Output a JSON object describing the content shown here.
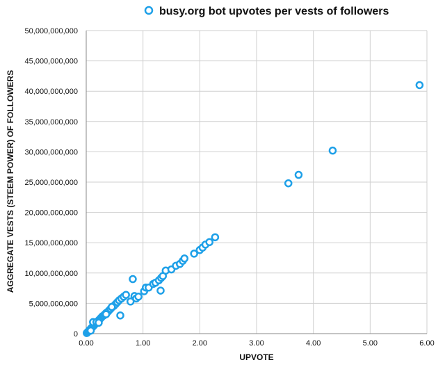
{
  "chart_data": {
    "type": "scatter",
    "title": "",
    "xlabel": "UPVOTE",
    "ylabel": "AGGREGATE VESTS (STEEM POWER) OF FOLLOWERS",
    "xlim": [
      0,
      6
    ],
    "ylim": [
      0,
      50000000000
    ],
    "grid": true,
    "legend_position": "top-center",
    "marker_color": "#1ea0e8",
    "x_tick_labels": [
      "0.00",
      "1.00",
      "2.00",
      "3.00",
      "4.00",
      "5.00",
      "6.00"
    ],
    "y_tick_labels": [
      "0",
      "5,000,000,000",
      "10,000,000,000",
      "15,000,000,000",
      "20,000,000,000",
      "25,000,000,000",
      "30,000,000,000",
      "35,000,000,000",
      "40,000,000,000",
      "45,000,000,000",
      "50,000,000,000"
    ],
    "series": [
      {
        "name": "busy.org bot upvotes per vests of followers",
        "points": [
          [
            0.01,
            100000000
          ],
          [
            0.02,
            200000000
          ],
          [
            0.03,
            300000000
          ],
          [
            0.04,
            400000000
          ],
          [
            0.05,
            500000000
          ],
          [
            0.06,
            600000000
          ],
          [
            0.07,
            700000000
          ],
          [
            0.08,
            800000000
          ],
          [
            0.09,
            900000000
          ],
          [
            0.1,
            1000000000
          ],
          [
            0.11,
            1100000000
          ],
          [
            0.12,
            1200000000
          ],
          [
            0.13,
            1300000000
          ],
          [
            0.14,
            1400000000
          ],
          [
            0.15,
            1500000000
          ],
          [
            0.17,
            1700000000
          ],
          [
            0.19,
            1900000000
          ],
          [
            0.21,
            2100000000
          ],
          [
            0.23,
            2300000000
          ],
          [
            0.25,
            2500000000
          ],
          [
            0.27,
            2700000000
          ],
          [
            0.29,
            2900000000
          ],
          [
            0.31,
            3000000000
          ],
          [
            0.33,
            3200000000
          ],
          [
            0.35,
            3400000000
          ],
          [
            0.38,
            3600000000
          ],
          [
            0.4,
            3800000000
          ],
          [
            0.43,
            4100000000
          ],
          [
            0.46,
            4400000000
          ],
          [
            0.49,
            4600000000
          ],
          [
            0.52,
            4900000000
          ],
          [
            0.55,
            5200000000
          ],
          [
            0.58,
            5500000000
          ],
          [
            0.62,
            5800000000
          ],
          [
            0.66,
            6100000000
          ],
          [
            0.7,
            6400000000
          ],
          [
            0.12,
            1900000000
          ],
          [
            0.18,
            1900000000
          ],
          [
            0.22,
            1800000000
          ],
          [
            0.08,
            500000000
          ],
          [
            0.35,
            3200000000
          ],
          [
            0.45,
            4400000000
          ],
          [
            0.6,
            3000000000
          ],
          [
            0.78,
            5300000000
          ],
          [
            0.82,
            9000000000
          ],
          [
            0.85,
            6200000000
          ],
          [
            0.88,
            5800000000
          ],
          [
            0.92,
            6100000000
          ],
          [
            1.02,
            7000000000
          ],
          [
            1.05,
            7600000000
          ],
          [
            1.1,
            7600000000
          ],
          [
            1.18,
            8200000000
          ],
          [
            1.22,
            8400000000
          ],
          [
            1.28,
            8800000000
          ],
          [
            1.32,
            9200000000
          ],
          [
            1.35,
            9500000000
          ],
          [
            1.31,
            7100000000
          ],
          [
            1.4,
            10400000000
          ],
          [
            1.5,
            10600000000
          ],
          [
            1.58,
            11200000000
          ],
          [
            1.65,
            11500000000
          ],
          [
            1.7,
            12000000000
          ],
          [
            1.73,
            12400000000
          ],
          [
            1.9,
            13200000000
          ],
          [
            2.0,
            13800000000
          ],
          [
            2.05,
            14200000000
          ],
          [
            2.1,
            14700000000
          ],
          [
            2.17,
            15100000000
          ],
          [
            2.27,
            15900000000
          ],
          [
            3.56,
            24800000000
          ],
          [
            3.74,
            26200000000
          ],
          [
            4.34,
            30200000000
          ],
          [
            5.87,
            41000000000
          ]
        ]
      }
    ]
  }
}
